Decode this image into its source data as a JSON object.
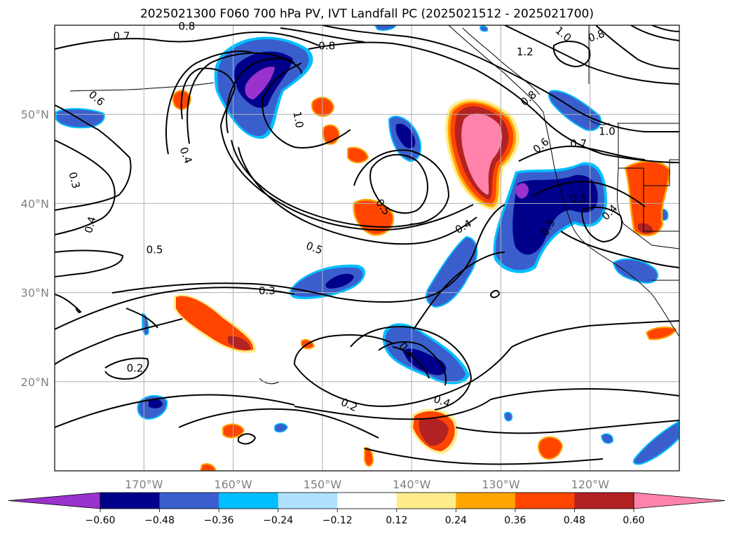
{
  "title": "2025021300 F060 700 hPa PV, IVT Landfall PC (2025021512 - 2025021700)",
  "map": {
    "lon_labels": [
      "170°W",
      "160°W",
      "150°W",
      "140°W",
      "130°W",
      "120°W"
    ],
    "lat_labels": [
      "50°N",
      "40°N",
      "30°N",
      "20°N"
    ],
    "contour_labels": [
      {
        "text": "0.8",
        "lon": -165.2,
        "lat": 59.9,
        "rot": 0
      },
      {
        "text": "0.7",
        "lon": -172.5,
        "lat": 58.8,
        "rot": 0
      },
      {
        "text": "0.8",
        "lon": -149.5,
        "lat": 57.7,
        "rot": 0
      },
      {
        "text": "0.6",
        "lon": -175.3,
        "lat": 51.8,
        "rot": 40
      },
      {
        "text": "1.0",
        "lon": -152.7,
        "lat": 49.4,
        "rot": 80
      },
      {
        "text": "0.4",
        "lon": -165.3,
        "lat": 45.4,
        "rot": 70
      },
      {
        "text": "0.3",
        "lon": -177.8,
        "lat": 42.6,
        "rot": 75
      },
      {
        "text": "0.4",
        "lon": -176.0,
        "lat": 37.6,
        "rot": -75
      },
      {
        "text": "0.5",
        "lon": -168.8,
        "lat": 34.8,
        "rot": 0
      },
      {
        "text": "0.5",
        "lon": -150.9,
        "lat": 35.0,
        "rot": 20
      },
      {
        "text": "0.5",
        "lon": -143.2,
        "lat": 39.6,
        "rot": 55
      },
      {
        "text": "0.4",
        "lon": -134.2,
        "lat": 37.4,
        "rot": -30
      },
      {
        "text": "0.3",
        "lon": -156.2,
        "lat": 30.2,
        "rot": 0
      },
      {
        "text": "0.2",
        "lon": -171.0,
        "lat": 21.5,
        "rot": 0
      },
      {
        "text": "0.2",
        "lon": -147.0,
        "lat": 17.4,
        "rot": 25
      },
      {
        "text": "0.4",
        "lon": -136.6,
        "lat": 17.8,
        "rot": 20
      },
      {
        "text": "0.4",
        "lon": -140.6,
        "lat": 23.5,
        "rot": 55
      },
      {
        "text": "1.2",
        "lon": -127.3,
        "lat": 57.0,
        "rot": 0
      },
      {
        "text": "1.0",
        "lon": -123.0,
        "lat": 59.0,
        "rot": 40
      },
      {
        "text": "0.8",
        "lon": -119.3,
        "lat": 58.8,
        "rot": -20
      },
      {
        "text": "0.8",
        "lon": -126.9,
        "lat": 51.8,
        "rot": -40
      },
      {
        "text": "0.6",
        "lon": -125.5,
        "lat": 46.5,
        "rot": -40
      },
      {
        "text": "1.0",
        "lon": -118.1,
        "lat": 48.1,
        "rot": 0
      },
      {
        "text": "0.7",
        "lon": -121.3,
        "lat": 46.7,
        "rot": 0
      },
      {
        "text": "0.5",
        "lon": -121.3,
        "lat": 40.5,
        "rot": 0
      },
      {
        "text": "0.4",
        "lon": -117.8,
        "lat": 39.0,
        "rot": -45
      },
      {
        "text": "0.3",
        "lon": -124.7,
        "lat": 37.3,
        "rot": -60
      }
    ]
  },
  "colorbar": {
    "ticks": [
      "−0.60",
      "−0.48",
      "−0.36",
      "−0.24",
      "−0.12",
      "0.12",
      "0.24",
      "0.36",
      "0.48",
      "0.60"
    ],
    "colors": [
      "#9a32cd",
      "#00008b",
      "#3a5fcd",
      "#00bfff",
      "#b0e2ff",
      "#ffffff",
      "#ffec8b",
      "#ffa500",
      "#ff4500",
      "#b22222",
      "#ff82ab"
    ]
  },
  "chart_data": {
    "type": "heatmap",
    "title": "2025021300 F060 700 hPa PV, IVT Landfall PC (2025021512 - 2025021700)",
    "xlim": [
      -180,
      -110
    ],
    "ylim": [
      10,
      60
    ],
    "levels": [
      -0.6,
      -0.48,
      -0.36,
      -0.24,
      -0.12,
      0.12,
      0.24,
      0.36,
      0.48,
      0.6
    ],
    "extend": "both",
    "contour_levels": [
      0.2,
      0.3,
      0.4,
      0.5,
      0.6,
      0.7,
      0.8,
      1.0,
      1.2
    ],
    "grid": true,
    "legend": "bottom colorbar"
  }
}
